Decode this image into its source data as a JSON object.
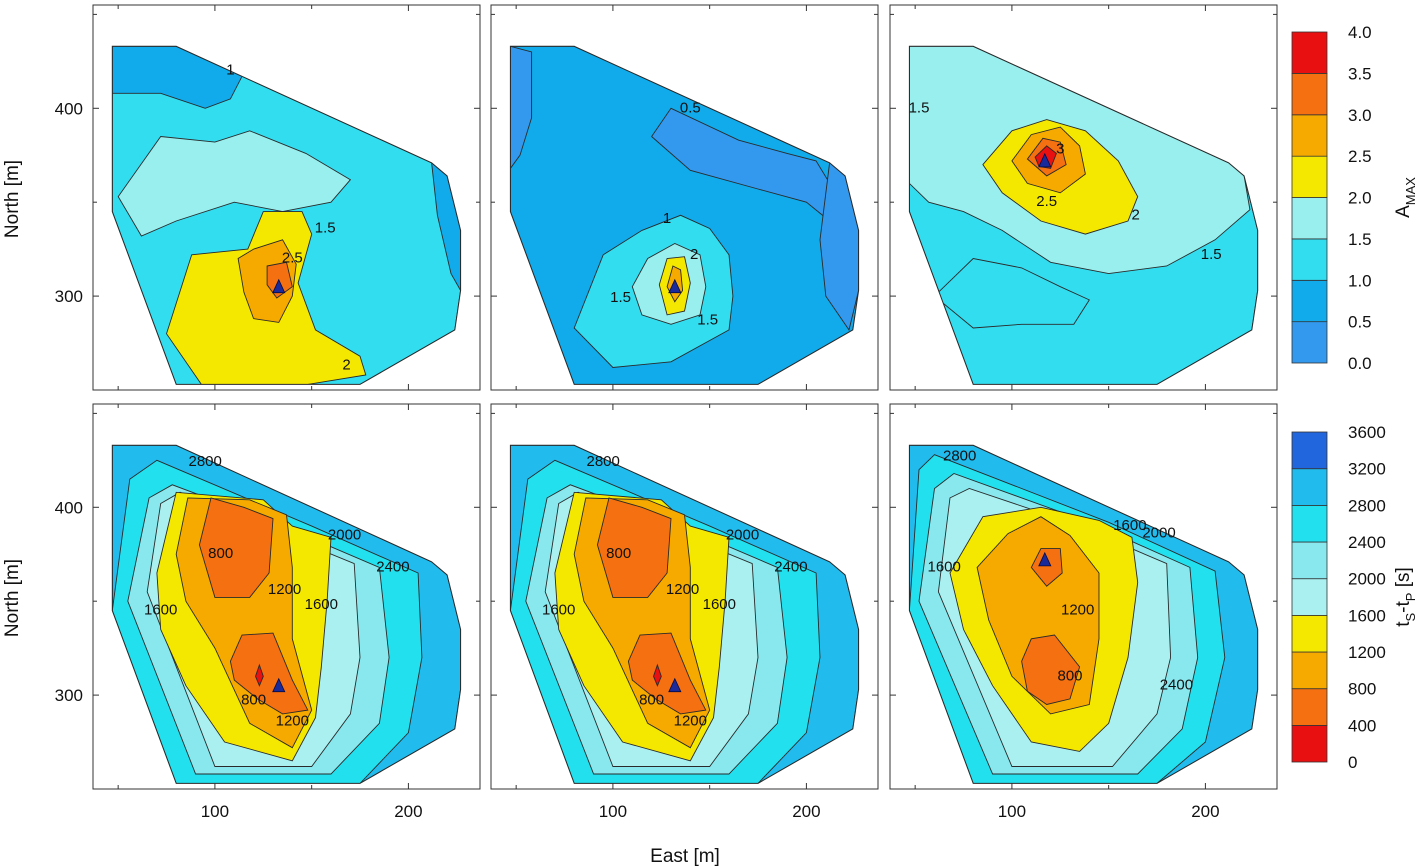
{
  "chart_data": {
    "type": "contour",
    "layout": "2 rows x 3 columns",
    "xlabel": "East [m]",
    "ylabel": "North [m]",
    "xticks": [
      100,
      200
    ],
    "yticks": [
      300,
      400
    ],
    "xlim": [
      37,
      237
    ],
    "ylim": [
      250,
      455
    ],
    "grid": false,
    "marker": "blue triangle (source position)",
    "colorbars": [
      {
        "label_main": "A",
        "label_sub": "MAX",
        "levels": [
          "0.0",
          "0.5",
          "1.0",
          "1.5",
          "2.0",
          "2.5",
          "3.0",
          "3.5",
          "4.0"
        ],
        "colors": [
          "#3399ee",
          "#11aaea",
          "#33ddf0",
          "#99eeee",
          "#f5e800",
          "#f6aa00",
          "#f47010",
          "#e81010"
        ]
      },
      {
        "label_parts": [
          "t",
          "S",
          "-t",
          "P",
          " [s]"
        ],
        "levels": [
          "0",
          "400",
          "800",
          "1200",
          "1600",
          "2000",
          "2400",
          "2800",
          "3200",
          "3600"
        ],
        "colors": [
          "#e81010",
          "#f47010",
          "#f6aa00",
          "#f5e800",
          "#aaf0f0",
          "#88e8ee",
          "#22e0ee",
          "#22bbee",
          "#2266dd"
        ]
      }
    ],
    "panels": [
      {
        "row": 1,
        "col": 1,
        "variable": "A_MAX",
        "marker": [
          133,
          305
        ],
        "contour_labels": [
          {
            "text": "1",
            "x": 108,
            "y": 420
          },
          {
            "text": "1.5",
            "x": 157,
            "y": 336
          },
          {
            "text": "2.5",
            "x": 140,
            "y": 320
          },
          {
            "text": "2",
            "x": 168,
            "y": 263
          }
        ]
      },
      {
        "row": 1,
        "col": 2,
        "variable": "A_MAX",
        "marker": [
          132,
          305
        ],
        "contour_labels": [
          {
            "text": "0.5",
            "x": 140,
            "y": 400
          },
          {
            "text": "1",
            "x": 128,
            "y": 341
          },
          {
            "text": "2",
            "x": 142,
            "y": 322
          },
          {
            "text": "1.5",
            "x": 104,
            "y": 299
          },
          {
            "text": "1.5",
            "x": 149,
            "y": 287
          }
        ]
      },
      {
        "row": 1,
        "col": 3,
        "variable": "A_MAX",
        "marker": [
          117,
          372
        ],
        "contour_labels": [
          {
            "text": "1.5",
            "x": 52,
            "y": 400
          },
          {
            "text": "3",
            "x": 125,
            "y": 378
          },
          {
            "text": "2.5",
            "x": 118,
            "y": 350
          },
          {
            "text": "2",
            "x": 164,
            "y": 343
          },
          {
            "text": "1.5",
            "x": 203,
            "y": 322
          }
        ]
      },
      {
        "row": 2,
        "col": 1,
        "variable": "tS-tP",
        "marker": [
          133,
          305
        ],
        "contour_labels": [
          {
            "text": "2800",
            "x": 95,
            "y": 424
          },
          {
            "text": "2000",
            "x": 167,
            "y": 385
          },
          {
            "text": "2400",
            "x": 192,
            "y": 368
          },
          {
            "text": "800",
            "x": 103,
            "y": 375
          },
          {
            "text": "1200",
            "x": 136,
            "y": 356
          },
          {
            "text": "1600",
            "x": 155,
            "y": 348
          },
          {
            "text": "1600",
            "x": 72,
            "y": 345
          },
          {
            "text": "800",
            "x": 120,
            "y": 297
          },
          {
            "text": "1200",
            "x": 140,
            "y": 286
          }
        ]
      },
      {
        "row": 2,
        "col": 2,
        "variable": "tS-tP",
        "marker": [
          132,
          305
        ],
        "contour_labels": [
          {
            "text": "2800",
            "x": 95,
            "y": 424
          },
          {
            "text": "2000",
            "x": 167,
            "y": 385
          },
          {
            "text": "2400",
            "x": 192,
            "y": 368
          },
          {
            "text": "800",
            "x": 103,
            "y": 375
          },
          {
            "text": "1200",
            "x": 136,
            "y": 356
          },
          {
            "text": "1600",
            "x": 155,
            "y": 348
          },
          {
            "text": "1600",
            "x": 72,
            "y": 345
          },
          {
            "text": "800",
            "x": 120,
            "y": 297
          },
          {
            "text": "1200",
            "x": 140,
            "y": 286
          }
        ]
      },
      {
        "row": 2,
        "col": 3,
        "variable": "tS-tP",
        "marker": [
          117,
          372
        ],
        "contour_labels": [
          {
            "text": "2800",
            "x": 73,
            "y": 427
          },
          {
            "text": "1600",
            "x": 161,
            "y": 390
          },
          {
            "text": "2000",
            "x": 176,
            "y": 386
          },
          {
            "text": "1600",
            "x": 65,
            "y": 368
          },
          {
            "text": "1200",
            "x": 134,
            "y": 345
          },
          {
            "text": "800",
            "x": 130,
            "y": 310
          },
          {
            "text": "2400",
            "x": 185,
            "y": 305
          }
        ]
      }
    ]
  }
}
